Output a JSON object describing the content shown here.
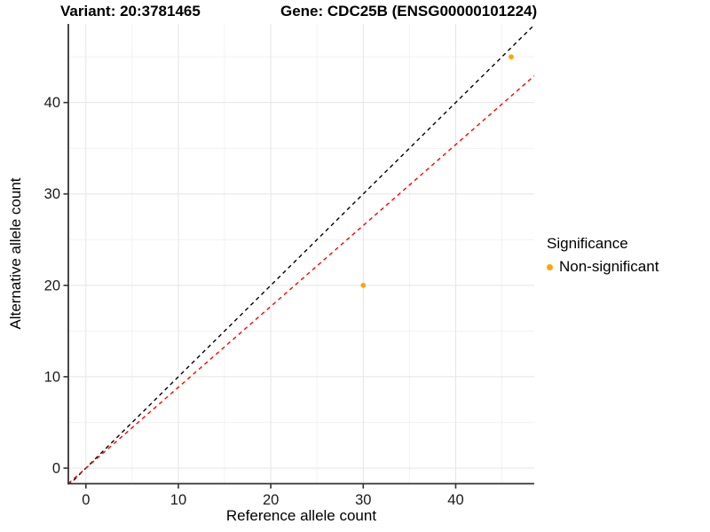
{
  "titles": {
    "variant": "Variant: 20:3781465",
    "gene": "Gene: CDC25B (ENSG00000101224)"
  },
  "colors": {
    "point": "#FFA500",
    "identity_line": "#000000",
    "expected_line": "#FF0000",
    "grid_major": "#e5e5e5",
    "grid_minor": "#f2f2f2",
    "axis_line": "#333333",
    "tick_text": "#1a1a1a",
    "background": "#ffffff"
  },
  "chart_data": {
    "type": "scatter",
    "title_left": "Variant: 20:3781465",
    "title_right": "Gene: CDC25B (ENSG00000101224)",
    "xlabel": "Reference allele count",
    "ylabel": "Alternative allele count",
    "xlim": [
      -1.9,
      48.5
    ],
    "ylim": [
      -1.7,
      48.6
    ],
    "x_ticks": [
      0,
      10,
      20,
      30,
      40
    ],
    "y_ticks": [
      0,
      10,
      20,
      30,
      40
    ],
    "x_minor_ticks": [
      5,
      15,
      25,
      35,
      45
    ],
    "y_minor_ticks": [
      5,
      15,
      25,
      35,
      45
    ],
    "grid": true,
    "series": [
      {
        "name": "Non-significant",
        "color": "#FFA500",
        "points": [
          {
            "x": 30,
            "y": 20
          },
          {
            "x": 46,
            "y": 45
          }
        ]
      }
    ],
    "reference_lines": [
      {
        "name": "identity",
        "slope": 1,
        "intercept": 0,
        "color": "#000000",
        "style": "dashed"
      },
      {
        "name": "expected-ratio",
        "slope": 0.885,
        "intercept": 0,
        "color": "#FF0000",
        "style": "dashed"
      }
    ],
    "legend": {
      "title": "Significance",
      "position": "right",
      "items": [
        {
          "label": "Non-significant",
          "color": "#FFA500"
        }
      ]
    }
  }
}
